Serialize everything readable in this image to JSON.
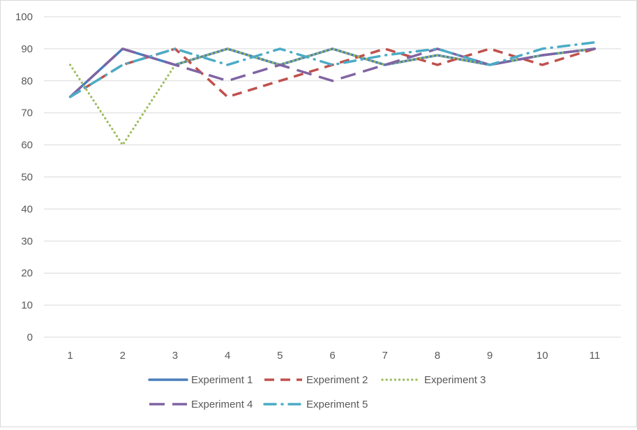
{
  "chart_data": {
    "type": "line",
    "title": "",
    "xlabel": "",
    "ylabel": "",
    "x": [
      1,
      2,
      3,
      4,
      5,
      6,
      7,
      8,
      9,
      10,
      11
    ],
    "ylim": [
      0,
      100
    ],
    "yticks": [
      0,
      10,
      20,
      30,
      40,
      50,
      60,
      70,
      80,
      90,
      100
    ],
    "grid": true,
    "legend_position": "bottom",
    "series": [
      {
        "name": "Experiment 1",
        "color": "#4a7ebb",
        "style": "solid",
        "values": [
          75,
          90,
          85,
          90,
          85,
          90,
          85,
          88,
          85,
          88,
          90
        ]
      },
      {
        "name": "Experiment 2",
        "color": "#c0504d",
        "style": "dash",
        "values": [
          75,
          85,
          90,
          75,
          80,
          85,
          90,
          85,
          90,
          85,
          90
        ]
      },
      {
        "name": "Experiment 3",
        "color": "#9bbb59",
        "style": "dot",
        "values": [
          85,
          60,
          85,
          90,
          85,
          90,
          85,
          88,
          85,
          88,
          90
        ]
      },
      {
        "name": "Experiment 4",
        "color": "#8064a2",
        "style": "longdash",
        "values": [
          75,
          90,
          85,
          80,
          85,
          80,
          85,
          90,
          85,
          88,
          90
        ]
      },
      {
        "name": "Experiment 5",
        "color": "#4bacc6",
        "style": "dashdot",
        "values": [
          75,
          85,
          90,
          85,
          90,
          85,
          88,
          90,
          85,
          90,
          92
        ]
      }
    ]
  }
}
